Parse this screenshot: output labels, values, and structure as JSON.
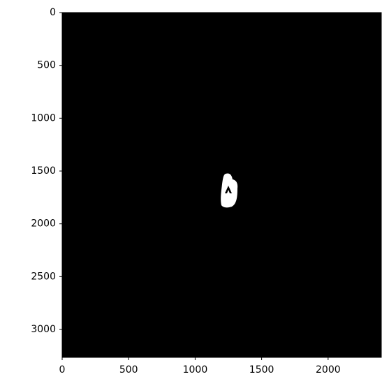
{
  "chart_data": {
    "type": "image",
    "xlim": [
      0,
      2400
    ],
    "ylim": [
      3264,
      0
    ],
    "xticks": [
      0,
      500,
      1000,
      1500,
      2000
    ],
    "yticks": [
      0,
      500,
      1000,
      1500,
      2000,
      2500,
      3000
    ]
  }
}
